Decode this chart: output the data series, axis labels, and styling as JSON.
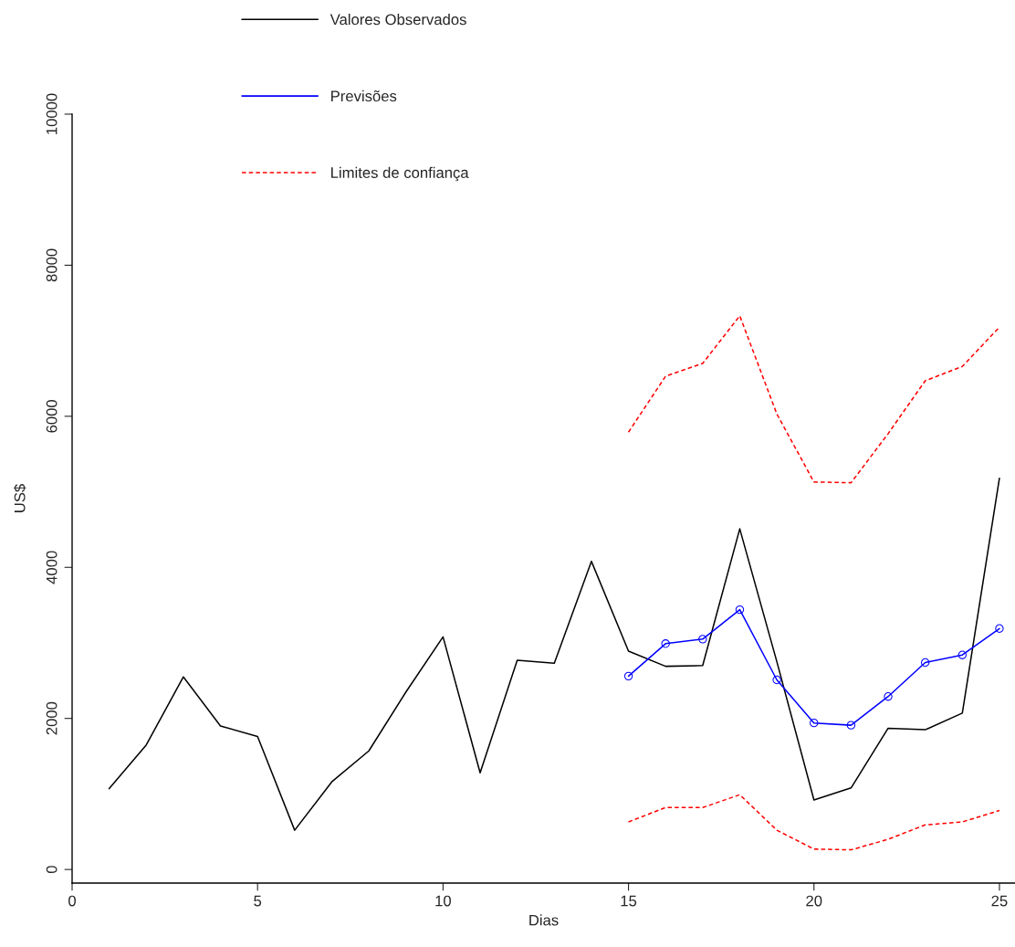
{
  "chart_data": {
    "type": "line",
    "xlabel": "Dias",
    "ylabel": "US$",
    "xlim": [
      0,
      25.42
    ],
    "xticks": [
      0,
      5,
      10,
      15,
      20,
      25
    ],
    "ylim": [
      -180,
      10000
    ],
    "yticks": [
      0,
      2000,
      4000,
      6000,
      8000,
      10000
    ],
    "grid": false,
    "legend": "top",
    "series": [
      {
        "name": "Valores Observados",
        "color": "#000000",
        "line_style": "solid",
        "marker": "none",
        "x": [
          1,
          2,
          3,
          4,
          5,
          6,
          7,
          8,
          9,
          10,
          11,
          12,
          13,
          14,
          15,
          16,
          17,
          18,
          19,
          20,
          21,
          22,
          23,
          24,
          25
        ],
        "values": [
          1070,
          1650,
          2550,
          1900,
          1760,
          520,
          1160,
          1570,
          2350,
          3080,
          1280,
          2770,
          2730,
          4080,
          2890,
          2690,
          2700,
          4510,
          2750,
          920,
          1080,
          1870,
          1850,
          2070,
          5180
        ]
      },
      {
        "name": "Previsões",
        "color": "#0000ff",
        "line_style": "solid",
        "marker": "circle",
        "x": [
          15,
          16,
          17,
          18,
          19,
          20,
          21,
          22,
          23,
          24,
          25
        ],
        "values": [
          2560,
          2990,
          3050,
          3440,
          2510,
          1940,
          1910,
          2290,
          2740,
          2840,
          3190
        ]
      },
      {
        "name": "Limites de confiança",
        "color": "#ff0000",
        "line_style": "dashed",
        "marker": "none",
        "x": [
          15,
          16,
          17,
          18,
          19,
          20,
          21,
          22,
          23,
          24,
          25
        ],
        "values": [
          5790,
          6530,
          6700,
          7330,
          6030,
          5130,
          5120,
          5770,
          6470,
          6660,
          7180
        ]
      },
      {
        "color": "#ff0000",
        "line_style": "dashed",
        "marker": "none",
        "x": [
          15,
          16,
          17,
          18,
          19,
          20,
          21,
          22,
          23,
          24,
          25
        ],
        "values": [
          630,
          820,
          820,
          990,
          520,
          270,
          260,
          400,
          590,
          630,
          780
        ]
      }
    ]
  }
}
